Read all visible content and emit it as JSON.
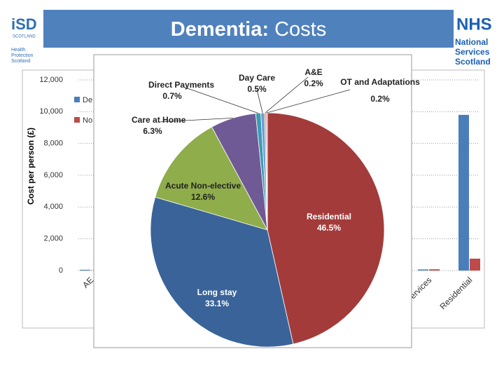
{
  "header": {
    "title_strong": "Dementia:",
    "title": "Costs",
    "left_logo": {
      "name": "iSD",
      "sub": "SCOTLAND",
      "lines": [
        "Health",
        "Protection",
        "Scotland"
      ]
    },
    "right_logo": {
      "name": "NHS",
      "lines": [
        "National",
        "Services",
        "Scotland"
      ]
    }
  },
  "chart_data": [
    {
      "type": "bar",
      "ylabel": "Cost per person (£)",
      "categories": [
        "AE",
        "ervices",
        "Residential"
      ],
      "series": [
        {
          "name": "De",
          "color": "#4a7ebb",
          "values": [
            50,
            70,
            9800
          ]
        },
        {
          "name": "No",
          "color": "#be4b48",
          "values": [
            20,
            80,
            750
          ]
        }
      ],
      "ylim": [
        0,
        12000
      ],
      "yticks": [
        0,
        {
          "value": 2000,
          "label": "2,000"
        },
        {
          "value": 4000,
          "label": "4,000"
        },
        {
          "value": 6000,
          "label": "6,000"
        },
        {
          "value": 8000,
          "label": "8,000"
        },
        {
          "value": 10000,
          "label": "10,000"
        },
        {
          "value": 12000,
          "label": "12,000"
        }
      ],
      "grid": true
    },
    {
      "type": "pie",
      "categories": [
        "Residential",
        "Long stay",
        "Acute Non-elective",
        "Care at Home",
        "Direct Payments",
        "Day Care",
        "A&E",
        "OT and Adaptations"
      ],
      "values": [
        46.5,
        33.1,
        12.6,
        6.3,
        0.7,
        0.5,
        0.2,
        0.2
      ],
      "value_labels": [
        "46.5%",
        "33.1%",
        "12.6%",
        "6.3%",
        "0.7%",
        "0.5%",
        "0.2%",
        "0.2%"
      ],
      "colors": [
        "#a33b3b",
        "#3a6499",
        "#8fad4a",
        "#6f5a96",
        "#3b9cb0",
        "#6a9fd8",
        "#e08a3c",
        "#d9a0a0"
      ]
    }
  ]
}
